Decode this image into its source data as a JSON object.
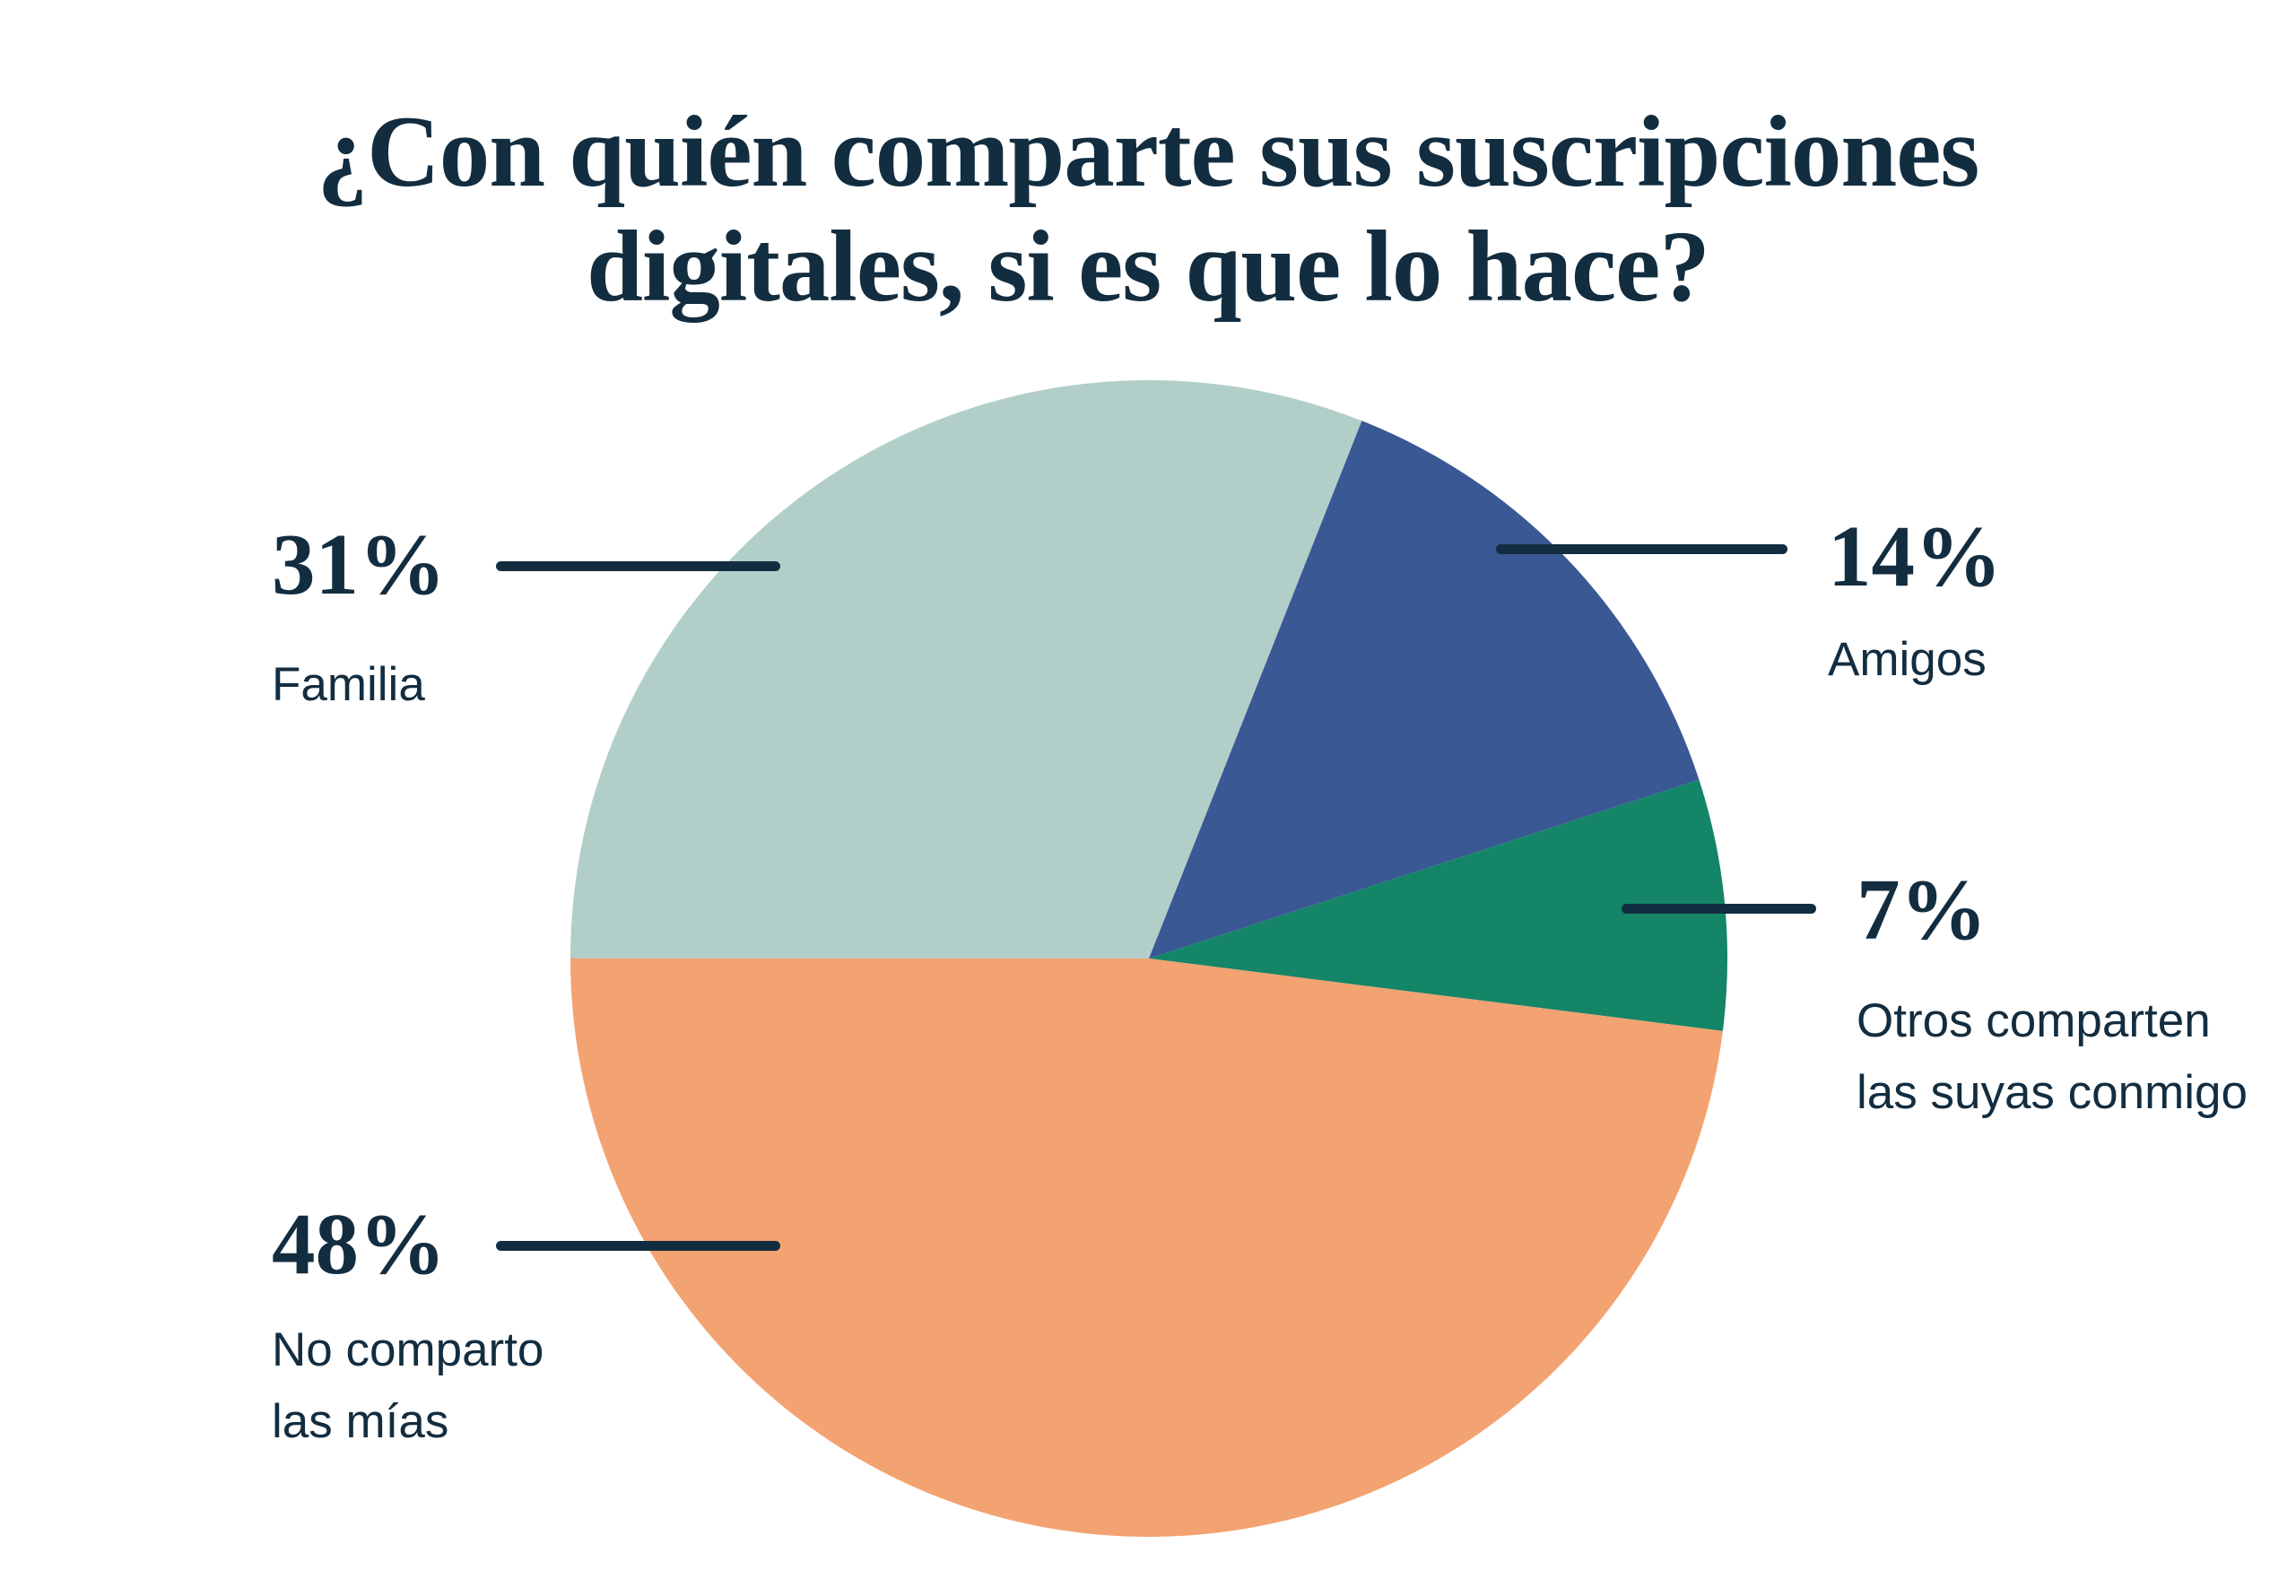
{
  "title": {
    "line1": "¿Con quién comparte sus suscripciones",
    "line2": "digitales, si es que lo hace?"
  },
  "colors": {
    "background": "#ffffff",
    "text_navy": "#132d40",
    "leader_line": "#132d40"
  },
  "chart_data": {
    "type": "pie",
    "title": "¿Con quién comparte sus suscripciones digitales, si es que lo hace?",
    "start_angle_deg": 180,
    "direction": "clockwise",
    "legend_position": "callouts",
    "slices": [
      {
        "label": "Familia",
        "value_pct": 31,
        "color": "#b2cec8"
      },
      {
        "label": "Amigos",
        "value_pct": 14,
        "color": "#3a5894"
      },
      {
        "label": "Otros comparten las suyas conmigo",
        "value_pct": 7,
        "color": "#148567"
      },
      {
        "label": "No comparto las mías",
        "value_pct": 48,
        "color": "#f3a271"
      }
    ]
  },
  "callouts": {
    "familia": {
      "pct": "31%",
      "label": "Familia"
    },
    "amigos": {
      "pct": "14%",
      "label": "Amigos"
    },
    "otros": {
      "pct": "7%",
      "label_line1": "Otros comparten",
      "label_line2": "las suyas conmigo"
    },
    "no_comparto": {
      "pct": "48%",
      "label_line1": "No comparto",
      "label_line2": "las mías"
    }
  }
}
